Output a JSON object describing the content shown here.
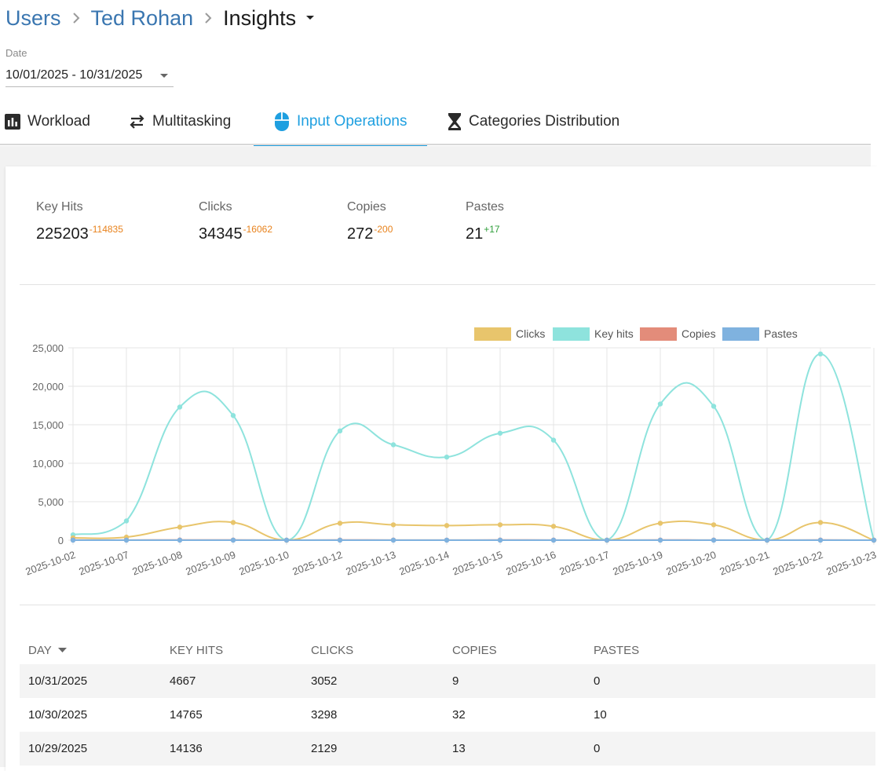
{
  "breadcrumb": {
    "items": [
      "Users",
      "Ted Rohan"
    ],
    "current": "Insights"
  },
  "date_filter": {
    "label": "Date",
    "value": "10/01/2025 - 10/31/2025"
  },
  "tabs": [
    {
      "label": "Workload",
      "icon": "bar-chart-icon"
    },
    {
      "label": "Multitasking",
      "icon": "swap-arrows-icon"
    },
    {
      "label": "Input Operations",
      "icon": "mouse-icon",
      "active": true
    },
    {
      "label": "Categories Distribution",
      "icon": "hourglass-icon"
    }
  ],
  "metrics": [
    {
      "label": "Key Hits",
      "value": "225203",
      "delta": "-114835"
    },
    {
      "label": "Clicks",
      "value": "34345",
      "delta": "-16062"
    },
    {
      "label": "Copies",
      "value": "272",
      "delta": "-200"
    },
    {
      "label": "Pastes",
      "value": "21",
      "delta": "+17"
    }
  ],
  "colors": {
    "accent": "#1e9fe0",
    "clicks": "#e8c56c",
    "key_hits": "#8ee3dd",
    "copies": "#e38c7a",
    "pastes": "#7fb2df",
    "delta_negative": "#e8821c",
    "delta_positive": "#2e9e3a"
  },
  "chart_data": {
    "type": "line",
    "title": "",
    "xlabel": "",
    "ylabel": "",
    "ylim": [
      0,
      25000
    ],
    "yticks": [
      "25,000",
      "20,000",
      "15,000",
      "10,000",
      "5,000",
      "0"
    ],
    "legend_position": "top-right",
    "categories": [
      "2025-10-02",
      "2025-10-07",
      "2025-10-08",
      "2025-10-09",
      "2025-10-10",
      "2025-10-12",
      "2025-10-13",
      "2025-10-14",
      "2025-10-15",
      "2025-10-16",
      "2025-10-17",
      "2025-10-19",
      "2025-10-20",
      "2025-10-21",
      "2025-10-22",
      "2025-10-23"
    ],
    "series": [
      {
        "name": "Clicks",
        "values": [
          300,
          400,
          1700,
          2300,
          0,
          2200,
          2000,
          1900,
          2000,
          1800,
          0,
          2200,
          2000,
          0,
          2300,
          0
        ]
      },
      {
        "name": "Key hits",
        "values": [
          700,
          2500,
          17300,
          16200,
          0,
          14200,
          12400,
          10800,
          13900,
          13000,
          0,
          17700,
          17400,
          0,
          24200,
          0
        ]
      },
      {
        "name": "Copies",
        "values": [
          20,
          10,
          30,
          20,
          0,
          20,
          15,
          10,
          20,
          15,
          0,
          20,
          15,
          0,
          20,
          0
        ]
      },
      {
        "name": "Pastes",
        "values": [
          0,
          0,
          1,
          0,
          0,
          1,
          0,
          0,
          1,
          0,
          0,
          1,
          0,
          0,
          1,
          0
        ]
      }
    ]
  },
  "table": {
    "columns": [
      "DAY",
      "KEY HITS",
      "CLICKS",
      "COPIES",
      "PASTES"
    ],
    "rows": [
      [
        "10/31/2025",
        "4667",
        "3052",
        "9",
        "0"
      ],
      [
        "10/30/2025",
        "14765",
        "3298",
        "32",
        "10"
      ],
      [
        "10/29/2025",
        "14136",
        "2129",
        "13",
        "0"
      ]
    ]
  }
}
